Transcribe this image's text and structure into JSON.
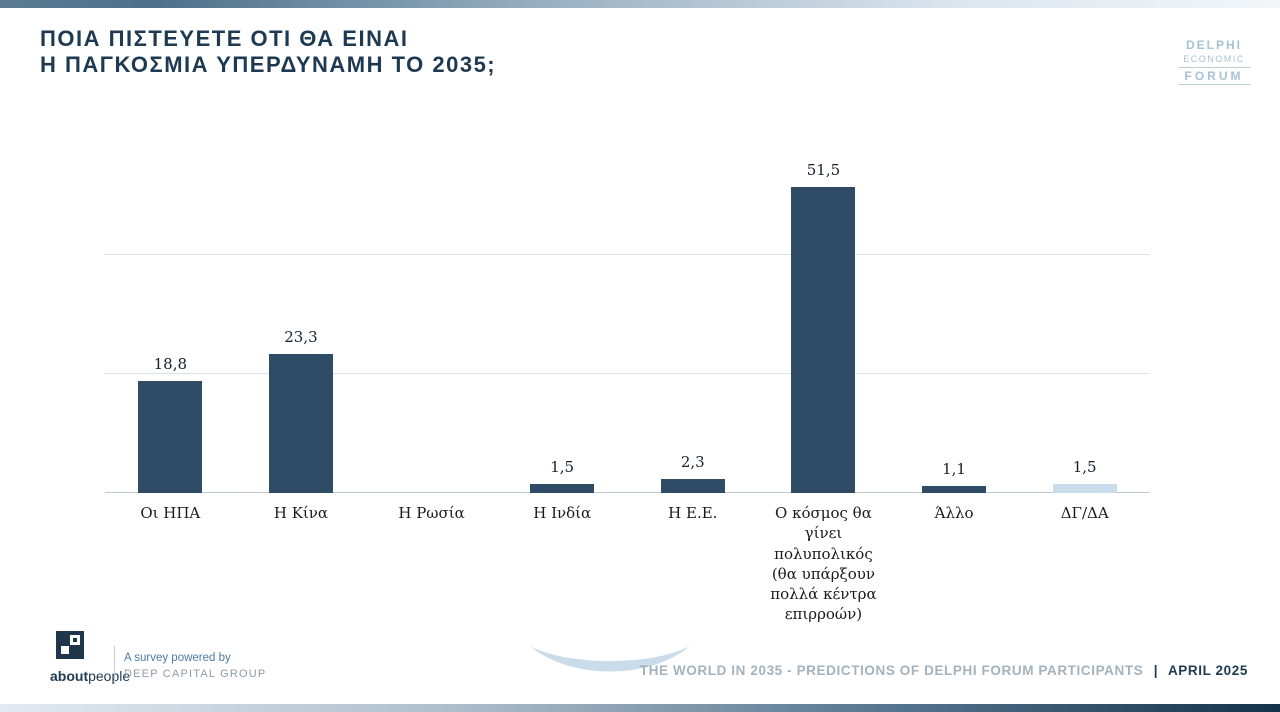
{
  "header": {
    "title_line1": "ΠΟΙΑ ΠΙΣΤΕΥΕΤΕ ΟΤΙ ΘΑ ΕΙΝΑΙ",
    "title_line2": "Η ΠΑΓΚΟΣΜΙΑ ΥΠΕΡΔΥΝΑΜΗ ΤΟ 2035;"
  },
  "logo": {
    "line1": "DELPHI",
    "line2": "ECONOMIC",
    "line3": "FORUM"
  },
  "chart_data": {
    "type": "bar",
    "title": "ΠΟΙΑ ΠΙΣΤΕΥΕΤΕ ΟΤΙ ΘΑ ΕΙΝΑΙ Η ΠΑΓΚΟΣΜΙΑ ΥΠΕΡΔΥΝΑΜΗ ΤΟ 2035;",
    "categories": [
      "Οι ΗΠΑ",
      "Η Κίνα",
      "Η Ρωσία",
      "Η Ινδία",
      "Η Ε.Ε.",
      "Ο κόσμος θα γίνει πολυπολικός (θα υπάρξουν πολλά κέντρα επιρροών)",
      "Άλλο",
      "ΔΓ/ΔΑ"
    ],
    "values": [
      18.8,
      23.3,
      0,
      1.5,
      2.3,
      51.5,
      1.1,
      1.5
    ],
    "value_labels": [
      "18,8",
      "23,3",
      "",
      "1,5",
      "2,3",
      "51,5",
      "1,1",
      "1,5"
    ],
    "ylim": [
      0,
      58
    ],
    "gridline_values": [
      0,
      20,
      40
    ],
    "grid": "horizontal",
    "legend": "none",
    "bar_color": "#2e4c66",
    "last_bar_color": "#c9dcec"
  },
  "footer": {
    "brand_bold": "about",
    "brand_rest": "people",
    "survey_line1": "A survey powered by",
    "survey_line2": "DEEP CAPITAL GROUP",
    "right_text": "THE WORLD IN 2035 - PREDICTIONS OF DELPHI FORUM PARTICIPANTS",
    "right_sep": "|",
    "right_date": "APRIL 2025"
  }
}
